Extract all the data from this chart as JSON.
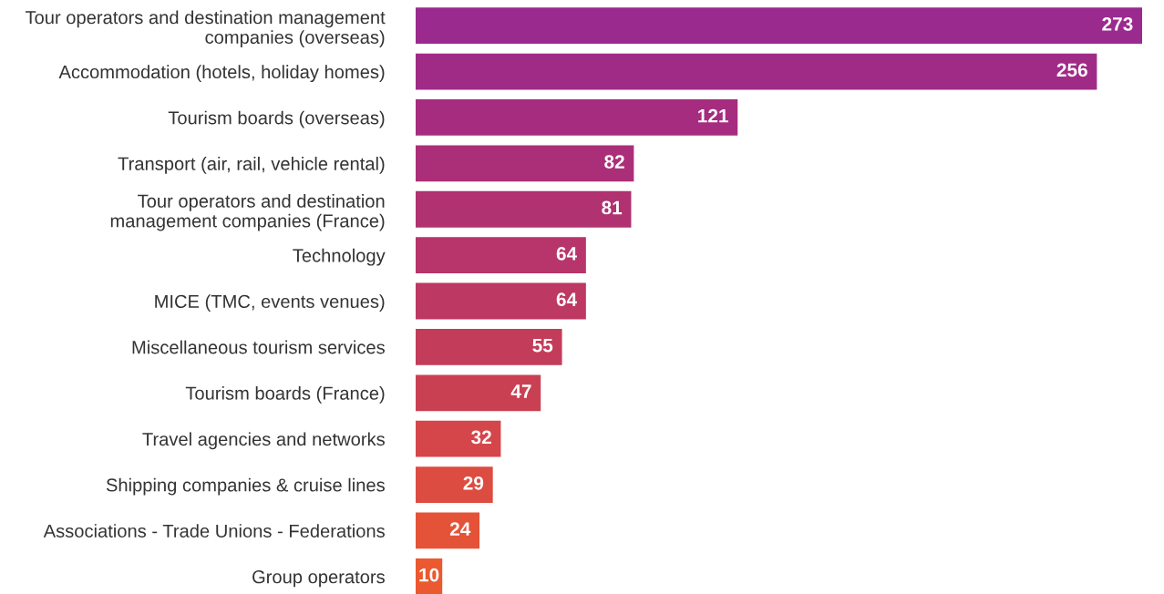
{
  "chart_data": {
    "type": "bar",
    "orientation": "horizontal",
    "data_labels": true,
    "categories": [
      "Tour operators and destination management\ncompanies (overseas)",
      "Accommodation (hotels, holiday homes)",
      "Tourism boards (overseas)",
      "Transport (air, rail, vehicle rental)",
      "Tour operators and destination\nmanagement companies (France)",
      "Technology",
      "MICE (TMC, events venues)",
      "Miscellaneous tourism services",
      "Tourism boards (France)",
      "Travel agencies and networks",
      "Shipping companies & cruise lines",
      "Associations - Trade Unions - Federations",
      "Group operators"
    ],
    "values": [
      273,
      256,
      121,
      82,
      81,
      64,
      64,
      55,
      47,
      32,
      29,
      24,
      10
    ],
    "colors": [
      "#9b2a8e",
      "#a02b87",
      "#a62c7f",
      "#ab2f78",
      "#b03270",
      "#b7356a",
      "#bd3862",
      "#c33c5a",
      "#ca4053",
      "#d4464a",
      "#dc4c40",
      "#e45337",
      "#ea592f"
    ]
  }
}
